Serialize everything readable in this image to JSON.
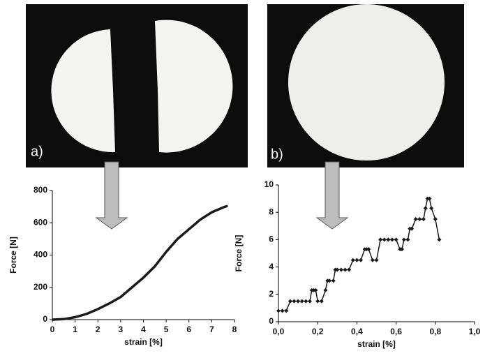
{
  "chart_data": [
    {
      "type": "line",
      "panel_label": "a)",
      "xlabel": "strain [%]",
      "ylabel": "Force [N]",
      "color": "#1a1a1a",
      "x": [
        0,
        0.5,
        1,
        1.5,
        2,
        2.5,
        3,
        3.5,
        4,
        4.5,
        5,
        5.5,
        6,
        6.5,
        7,
        7.5,
        7.7
      ],
      "values": [
        0,
        3,
        15,
        35,
        65,
        100,
        140,
        200,
        260,
        330,
        420,
        500,
        560,
        620,
        665,
        695,
        705
      ],
      "xlim": [
        0,
        8
      ],
      "xticks": [
        0,
        1,
        2,
        3,
        4,
        5,
        6,
        7,
        8
      ],
      "ylim": [
        0,
        800
      ],
      "yticks": [
        0,
        200,
        400,
        600,
        800
      ],
      "markers": false
    },
    {
      "type": "line",
      "panel_label": "b)",
      "xlabel": "strain [%]",
      "ylabel": "Force [N]",
      "color": "#1a1a1a",
      "x": [
        0,
        0.02,
        0.04,
        0.06,
        0.08,
        0.1,
        0.12,
        0.14,
        0.16,
        0.17,
        0.18,
        0.19,
        0.2,
        0.22,
        0.24,
        0.25,
        0.26,
        0.28,
        0.29,
        0.3,
        0.32,
        0.34,
        0.36,
        0.38,
        0.4,
        0.42,
        0.44,
        0.45,
        0.46,
        0.48,
        0.5,
        0.52,
        0.54,
        0.56,
        0.58,
        0.6,
        0.62,
        0.63,
        0.64,
        0.66,
        0.67,
        0.68,
        0.7,
        0.72,
        0.74,
        0.75,
        0.76,
        0.77,
        0.78,
        0.8,
        0.82
      ],
      "values": [
        0.8,
        0.8,
        0.8,
        1.5,
        1.5,
        1.5,
        1.5,
        1.5,
        1.5,
        2.3,
        2.3,
        2.3,
        1.5,
        1.5,
        2.3,
        3,
        3,
        3,
        3.8,
        3.8,
        3.8,
        3.8,
        3.8,
        4.5,
        4.5,
        4.5,
        5.3,
        5.3,
        5.3,
        4.5,
        4.5,
        6,
        6,
        6,
        6,
        6,
        5.3,
        5.3,
        6,
        6,
        6.8,
        6.8,
        7.5,
        7.5,
        7.5,
        8.3,
        9,
        9,
        8.3,
        7.5,
        6
      ],
      "xlim": [
        0,
        1
      ],
      "xticks": [
        {
          "value": 0,
          "label": "0,0"
        },
        {
          "value": 0.2,
          "label": "0,2"
        },
        {
          "value": 0.4,
          "label": "0,4"
        },
        {
          "value": 0.6,
          "label": "0,6"
        },
        {
          "value": 0.8,
          "label": "0,8"
        },
        {
          "value": 1,
          "label": "1,0"
        }
      ],
      "ylim": [
        0,
        10
      ],
      "yticks": [
        0,
        2,
        4,
        6,
        8,
        10
      ],
      "markers": true
    }
  ]
}
